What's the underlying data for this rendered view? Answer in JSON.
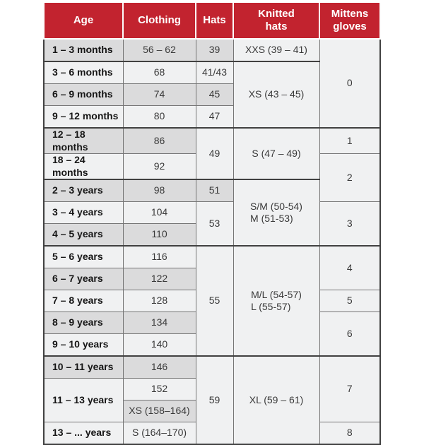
{
  "colors": {
    "header_bg": "#C2232F",
    "header_text": "#FFFFFF",
    "row_shade": "#DBDBDC",
    "row_light": "#F0F1F2",
    "grid": "#757575",
    "grid_strong": "#414141",
    "text": "#3A3A3A",
    "text_age": "#161616"
  },
  "table": {
    "columns": [
      {
        "key": "age",
        "label": "Age"
      },
      {
        "key": "clothing",
        "label": "Clothing"
      },
      {
        "key": "hats",
        "label": "Hats"
      },
      {
        "key": "knitted-hats",
        "label": "Knitted\nhats"
      },
      {
        "key": "mittens-gloves",
        "label": "Mittens\ngloves"
      }
    ],
    "rows": [
      {
        "group_start": false,
        "cells": [
          {
            "t": "1 – 3 months",
            "c": 0,
            "rs": 1,
            "sh": true
          },
          {
            "t": "56 – 62",
            "c": 1,
            "rs": 1,
            "sh": true
          },
          {
            "t": "39",
            "c": 2,
            "rs": 1,
            "sh": true
          },
          {
            "t": "XXS (39 – 41)",
            "c": 3,
            "rs": 1,
            "sh": false
          },
          {
            "t": "0",
            "c": 4,
            "rs": 4,
            "sh": false
          }
        ]
      },
      {
        "group_start": true,
        "cells": [
          {
            "t": "3 – 6 months",
            "c": 0,
            "rs": 1,
            "sh": false
          },
          {
            "t": "68",
            "c": 1,
            "rs": 1,
            "sh": false
          },
          {
            "t": "41/43",
            "c": 2,
            "rs": 1,
            "sh": false
          },
          {
            "t": "XS (43 – 45)",
            "c": 3,
            "rs": 3,
            "sh": false
          }
        ]
      },
      {
        "group_start": false,
        "cells": [
          {
            "t": "6 – 9 months",
            "c": 0,
            "rs": 1,
            "sh": true
          },
          {
            "t": "74",
            "c": 1,
            "rs": 1,
            "sh": true
          },
          {
            "t": "45",
            "c": 2,
            "rs": 1,
            "sh": true
          }
        ]
      },
      {
        "group_start": false,
        "cells": [
          {
            "t": "9 – 12 months",
            "c": 0,
            "rs": 1,
            "sh": false
          },
          {
            "t": "80",
            "c": 1,
            "rs": 1,
            "sh": false
          },
          {
            "t": "47",
            "c": 2,
            "rs": 1,
            "sh": false
          }
        ]
      },
      {
        "group_start": true,
        "cells": [
          {
            "t": "12 – 18 months",
            "c": 0,
            "rs": 1,
            "sh": true
          },
          {
            "t": "86",
            "c": 1,
            "rs": 1,
            "sh": true
          },
          {
            "t": "49",
            "c": 2,
            "rs": 2,
            "sh": false
          },
          {
            "t": "S (47 – 49)",
            "c": 3,
            "rs": 2,
            "sh": false
          },
          {
            "t": "1",
            "c": 4,
            "rs": 1,
            "sh": false
          }
        ]
      },
      {
        "group_start": false,
        "cells": [
          {
            "t": "18 – 24 months",
            "c": 0,
            "rs": 1,
            "sh": false
          },
          {
            "t": "92",
            "c": 1,
            "rs": 1,
            "sh": false
          },
          {
            "t": "2",
            "c": 4,
            "rs": 2,
            "sh": false
          }
        ]
      },
      {
        "group_start": true,
        "cells": [
          {
            "t": "2 – 3 years",
            "c": 0,
            "rs": 1,
            "sh": true
          },
          {
            "t": "98",
            "c": 1,
            "rs": 1,
            "sh": true
          },
          {
            "t": "51",
            "c": 2,
            "rs": 1,
            "sh": true
          },
          {
            "t": "S/M (50-54)\nM (51-53)",
            "c": 3,
            "rs": 3,
            "sh": false
          }
        ]
      },
      {
        "group_start": false,
        "cells": [
          {
            "t": "3 – 4 years",
            "c": 0,
            "rs": 1,
            "sh": false
          },
          {
            "t": "104",
            "c": 1,
            "rs": 1,
            "sh": false
          },
          {
            "t": "53",
            "c": 2,
            "rs": 2,
            "sh": false
          },
          {
            "t": "3",
            "c": 4,
            "rs": 2,
            "sh": false
          }
        ]
      },
      {
        "group_start": false,
        "cells": [
          {
            "t": "4 – 5 years",
            "c": 0,
            "rs": 1,
            "sh": true
          },
          {
            "t": "110",
            "c": 1,
            "rs": 1,
            "sh": true
          }
        ]
      },
      {
        "group_start": true,
        "cells": [
          {
            "t": "5 – 6 years",
            "c": 0,
            "rs": 1,
            "sh": false
          },
          {
            "t": "116",
            "c": 1,
            "rs": 1,
            "sh": false
          },
          {
            "t": "55",
            "c": 2,
            "rs": 5,
            "sh": false
          },
          {
            "t": "M/L (54-57)\nL (55-57)",
            "c": 3,
            "rs": 5,
            "sh": false
          },
          {
            "t": "4",
            "c": 4,
            "rs": 2,
            "sh": false
          }
        ]
      },
      {
        "group_start": false,
        "cells": [
          {
            "t": "6 – 7 years",
            "c": 0,
            "rs": 1,
            "sh": true
          },
          {
            "t": "122",
            "c": 1,
            "rs": 1,
            "sh": true
          }
        ]
      },
      {
        "group_start": false,
        "cells": [
          {
            "t": "7 – 8 years",
            "c": 0,
            "rs": 1,
            "sh": false
          },
          {
            "t": "128",
            "c": 1,
            "rs": 1,
            "sh": false
          },
          {
            "t": "5",
            "c": 4,
            "rs": 1,
            "sh": false
          }
        ]
      },
      {
        "group_start": false,
        "cells": [
          {
            "t": "8 – 9 years",
            "c": 0,
            "rs": 1,
            "sh": true
          },
          {
            "t": "134",
            "c": 1,
            "rs": 1,
            "sh": true
          },
          {
            "t": "6",
            "c": 4,
            "rs": 2,
            "sh": false
          }
        ]
      },
      {
        "group_start": false,
        "cells": [
          {
            "t": "9 – 10 years",
            "c": 0,
            "rs": 1,
            "sh": false
          },
          {
            "t": "140",
            "c": 1,
            "rs": 1,
            "sh": false
          }
        ]
      },
      {
        "group_start": true,
        "cells": [
          {
            "t": "10 – 11 years",
            "c": 0,
            "rs": 1,
            "sh": true
          },
          {
            "t": "146",
            "c": 1,
            "rs": 1,
            "sh": true
          },
          {
            "t": "59",
            "c": 2,
            "rs": 4,
            "sh": false
          },
          {
            "t": "XL (59 – 61)",
            "c": 3,
            "rs": 4,
            "sh": false
          },
          {
            "t": "7",
            "c": 4,
            "rs": 3,
            "sh": false
          }
        ]
      },
      {
        "group_start": false,
        "cells": [
          {
            "t": "11 – 13 years",
            "c": 0,
            "rs": 2,
            "sh": false
          },
          {
            "t": "152",
            "c": 1,
            "rs": 1,
            "sh": false
          }
        ]
      },
      {
        "group_start": false,
        "cells": [
          {
            "t": "XS (158–164)",
            "c": 1,
            "rs": 1,
            "sh": true
          }
        ]
      },
      {
        "group_start": false,
        "cells": [
          {
            "t": "13 – ... years",
            "c": 0,
            "rs": 1,
            "sh": false
          },
          {
            "t": "S (164–170)",
            "c": 1,
            "rs": 1,
            "sh": false
          },
          {
            "t": "8",
            "c": 4,
            "rs": 1,
            "sh": false
          }
        ]
      }
    ]
  }
}
